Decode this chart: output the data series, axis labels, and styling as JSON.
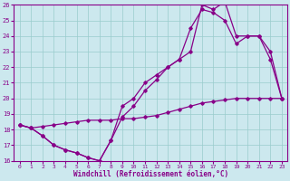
{
  "xlabel": "Windchill (Refroidissement éolien,°C)",
  "bg_color": "#cce8ee",
  "line_color": "#880088",
  "grid_color": "#99cccc",
  "xlim": [
    -0.5,
    23.5
  ],
  "ylim": [
    16,
    26
  ],
  "xticks": [
    0,
    1,
    2,
    3,
    4,
    5,
    6,
    7,
    8,
    9,
    10,
    11,
    12,
    13,
    14,
    15,
    16,
    17,
    18,
    19,
    20,
    21,
    22,
    23
  ],
  "yticks": [
    16,
    17,
    18,
    19,
    20,
    21,
    22,
    23,
    24,
    25,
    26
  ],
  "line1_x": [
    0,
    1,
    2,
    3,
    4,
    5,
    6,
    7,
    8,
    9,
    10,
    11,
    12,
    13,
    14,
    15,
    16,
    17,
    18,
    19,
    20,
    21,
    22,
    23
  ],
  "line1_y": [
    18.3,
    18.1,
    17.6,
    17.0,
    16.7,
    16.5,
    16.2,
    16.0,
    17.3,
    19.5,
    20.0,
    21.0,
    21.5,
    22.0,
    22.5,
    23.0,
    26.0,
    25.7,
    26.2,
    24.0,
    24.0,
    24.0,
    22.5,
    20.0
  ],
  "line2_x": [
    0,
    1,
    2,
    3,
    4,
    5,
    6,
    7,
    8,
    9,
    10,
    11,
    12,
    13,
    14,
    15,
    16,
    17,
    18,
    19,
    20,
    21,
    22,
    23
  ],
  "line2_y": [
    18.3,
    18.1,
    17.6,
    17.0,
    16.7,
    16.5,
    16.2,
    16.0,
    17.3,
    18.8,
    19.5,
    20.5,
    21.2,
    22.0,
    22.5,
    24.5,
    25.7,
    25.5,
    25.0,
    23.5,
    24.0,
    24.0,
    23.0,
    20.0
  ],
  "line3_x": [
    0,
    1,
    2,
    3,
    4,
    5,
    6,
    7,
    8,
    9,
    10,
    11,
    12,
    13,
    14,
    15,
    16,
    17,
    18,
    19,
    20,
    21,
    22,
    23
  ],
  "line3_y": [
    18.3,
    18.1,
    18.2,
    18.3,
    18.4,
    18.5,
    18.6,
    18.6,
    18.6,
    18.7,
    18.7,
    18.8,
    18.9,
    19.1,
    19.3,
    19.5,
    19.7,
    19.8,
    19.9,
    20.0,
    20.0,
    20.0,
    20.0,
    20.0
  ]
}
